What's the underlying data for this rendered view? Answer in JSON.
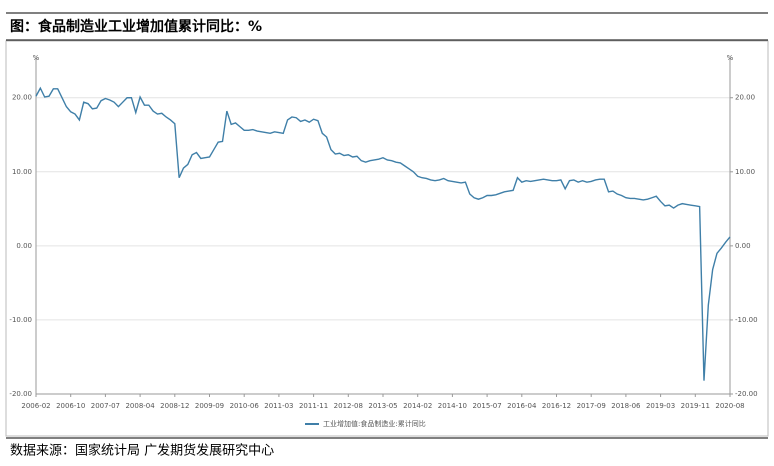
{
  "chart_data": {
    "type": "line",
    "title": "图：食品制造业工业增加值累计同比：%",
    "source": "数据来源：国家统计局  广发期货发展研究中心",
    "y_label": "%",
    "y2_label": "%",
    "categories": [
      "2006-02",
      null,
      null,
      null,
      null,
      null,
      null,
      null,
      "2006-10",
      null,
      null,
      null,
      null,
      null,
      null,
      null,
      "2007-07",
      null,
      null,
      null,
      null,
      null,
      null,
      null,
      "2008-04",
      null,
      null,
      null,
      null,
      null,
      null,
      null,
      "2008-12",
      null,
      null,
      null,
      null,
      null,
      null,
      null,
      "2009-09",
      null,
      null,
      null,
      null,
      null,
      null,
      null,
      "2010-06",
      null,
      null,
      null,
      null,
      null,
      null,
      null,
      "2011-03",
      null,
      null,
      null,
      null,
      null,
      null,
      null,
      "2011-11",
      null,
      null,
      null,
      null,
      null,
      null,
      null,
      "2012-08",
      null,
      null,
      null,
      null,
      null,
      null,
      null,
      "2013-05",
      null,
      null,
      null,
      null,
      null,
      null,
      null,
      "2014-02",
      null,
      null,
      null,
      null,
      null,
      null,
      null,
      "2014-10",
      null,
      null,
      null,
      null,
      null,
      null,
      null,
      "2015-07",
      null,
      null,
      null,
      null,
      null,
      null,
      null,
      "2016-04",
      null,
      null,
      null,
      null,
      null,
      null,
      null,
      "2016-12",
      null,
      null,
      null,
      null,
      null,
      null,
      null,
      "2017-09",
      null,
      null,
      null,
      null,
      null,
      null,
      null,
      "2018-06",
      null,
      null,
      null,
      null,
      null,
      null,
      null,
      "2019-03",
      null,
      null,
      null,
      null,
      null,
      null,
      null,
      "2019-11",
      null,
      null,
      null,
      null,
      null,
      null,
      null,
      "2020-08"
    ],
    "series": [
      {
        "name": "工业增加值:食品制造业:累计同比",
        "color": "#3f7fa8",
        "values": [
          20.2,
          21.3,
          20.1,
          20.2,
          21.2,
          21.2,
          20.0,
          18.8,
          18.1,
          17.8,
          17.0,
          19.4,
          19.2,
          18.5,
          18.6,
          19.6,
          19.9,
          19.7,
          19.4,
          18.8,
          19.4,
          20.0,
          20.0,
          18.0,
          20.1,
          19.0,
          19.0,
          18.2,
          17.8,
          17.9,
          17.4,
          17.0,
          16.5,
          9.2,
          10.5,
          11.0,
          12.3,
          12.6,
          11.8,
          11.9,
          12.0,
          13.0,
          14.0,
          14.1,
          18.2,
          16.4,
          16.6,
          16.1,
          15.6,
          15.6,
          15.7,
          15.5,
          15.4,
          15.3,
          15.2,
          15.4,
          15.3,
          15.2,
          17.0,
          17.4,
          17.3,
          16.8,
          17.0,
          16.7,
          17.1,
          16.9,
          15.2,
          14.7,
          13.0,
          12.4,
          12.5,
          12.2,
          12.3,
          12.0,
          12.1,
          11.5,
          11.3,
          11.5,
          11.6,
          11.7,
          11.9,
          11.6,
          11.5,
          11.3,
          11.2,
          10.8,
          10.4,
          10.0,
          9.4,
          9.2,
          9.1,
          8.9,
          8.8,
          8.9,
          9.1,
          8.8,
          8.7,
          8.6,
          8.5,
          8.6,
          7.0,
          6.5,
          6.3,
          6.5,
          6.8,
          6.8,
          6.9,
          7.1,
          7.3,
          7.4,
          7.5,
          9.2,
          8.6,
          8.8,
          8.7,
          8.8,
          8.9,
          9.0,
          8.9,
          8.8,
          8.8,
          8.9,
          7.7,
          8.8,
          8.9,
          8.6,
          8.8,
          8.6,
          8.7,
          8.9,
          9.0,
          9.0,
          7.3,
          7.4,
          7.0,
          6.8,
          6.5,
          6.4,
          6.4,
          6.3,
          6.2,
          6.3,
          6.5,
          6.7,
          6.0,
          5.4,
          5.5,
          5.1,
          5.5,
          5.7,
          5.6,
          5.5,
          5.4,
          5.3,
          -18.2,
          -8.0,
          -3.2,
          -1.0,
          -0.3,
          0.5,
          1.2
        ]
      }
    ],
    "ylim": [
      -20,
      25.5
    ],
    "yticks": [
      {
        "value": -20,
        "label": "-20.00"
      },
      {
        "value": -10,
        "label": "-10.00"
      },
      {
        "value": 0,
        "label": "0.00"
      },
      {
        "value": 10,
        "label": "10.00"
      },
      {
        "value": 20,
        "label": "20.00"
      }
    ],
    "y2lim": [
      -20,
      25.5
    ],
    "y2ticks": [
      {
        "value": -20,
        "label": "-20.00"
      },
      {
        "value": -10,
        "label": "-10.00"
      },
      {
        "value": 0,
        "label": "0.00"
      },
      {
        "value": 10,
        "label": "10.00"
      },
      {
        "value": 20,
        "label": "20.00"
      }
    ],
    "grid": true,
    "legend": "bottom"
  }
}
